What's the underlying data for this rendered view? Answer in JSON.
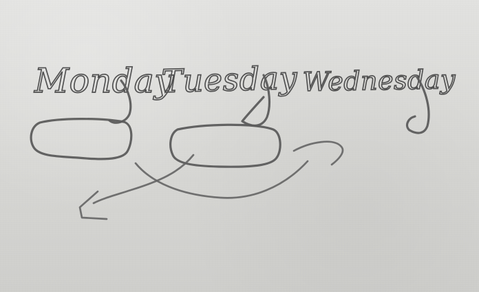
{
  "diagram": {
    "nodes": [
      {
        "label": "Monday"
      },
      {
        "label": "Tuesday"
      },
      {
        "label": "Wednesday"
      }
    ],
    "connections": [
      {
        "from": "Tuesday",
        "to": "Monday",
        "style": "hand-drawn arrow"
      },
      {
        "from": "Monday",
        "to": "Wednesday",
        "style": "hand-drawn arrow"
      }
    ],
    "colors": {
      "paper": "#d9d9d9",
      "pencil": "#5c5c5c"
    }
  }
}
